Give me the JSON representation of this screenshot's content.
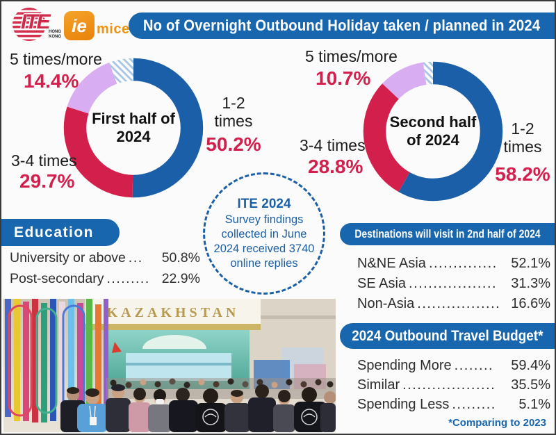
{
  "header": {
    "title": "No of Overnight Outbound Holiday taken / planned in 2024",
    "ite_logo": {
      "text": "ITE",
      "sub1": "HONG",
      "sub2": "KONG"
    },
    "iemice_logo": {
      "square": "ie",
      "suffix": "mice"
    }
  },
  "survey_note": {
    "lines": [
      "ITE 2024",
      "Survey findings",
      "collected in June",
      "2024 received 3740",
      "online replies"
    ]
  },
  "education": {
    "header": "Education",
    "rows": [
      {
        "label": "University or above",
        "dots": "...",
        "value": "50.8%"
      },
      {
        "label": "Post-secondary",
        "dots": ".........",
        "value": "22.9%"
      }
    ]
  },
  "destinations": {
    "header": "Destinations will visit in 2nd half of 2024",
    "rows": [
      {
        "label": "N&NE Asia",
        "dots": "..............",
        "value": "52.1%"
      },
      {
        "label": "SE Asia",
        "dots": "..................",
        "value": "31.3%"
      },
      {
        "label": "Non-Asia",
        "dots": ".................",
        "value": "16.6%"
      }
    ]
  },
  "budget": {
    "header": "2024 Outbound Travel Budget*",
    "rows": [
      {
        "label": "Spending More",
        "dots": "........",
        "value": "59.4%"
      },
      {
        "label": "Similar",
        "dots": "...................",
        "value": "35.5%"
      },
      {
        "label": "Spending Less",
        "dots": ".........",
        "value": "5.1%"
      }
    ],
    "footnote": "*Comparing to 2023"
  },
  "photo": {
    "banner_text": "KAZAKHSTAN"
  },
  "colors": {
    "primary_blue": "#1766ae",
    "chart_blue": "#1a5fa8",
    "accent_red": "#d31f4c",
    "lavender": "#d9adf2",
    "hatch_blue": "#a9c6e3"
  },
  "chart_data": [
    {
      "type": "donut",
      "title": "First half of 2024",
      "unit": "%",
      "segments": [
        {
          "label": "1-2 times",
          "value": 50.2,
          "display": "50.2%",
          "color": "#1a5fa8"
        },
        {
          "label": "3-4 times",
          "value": 29.7,
          "display": "29.7%",
          "color": "#d31f4c"
        },
        {
          "label": "5 times/more",
          "value": 14.4,
          "display": "14.4%",
          "color": "#d9adf2"
        },
        {
          "label": "",
          "value": 5.7,
          "display": "",
          "color": "hatch"
        }
      ]
    },
    {
      "type": "donut",
      "title": "Second half of 2024",
      "unit": "%",
      "segments": [
        {
          "label": "1-2 times",
          "value": 58.2,
          "display": "58.2%",
          "color": "#1a5fa8"
        },
        {
          "label": "3-4 times",
          "value": 28.8,
          "display": "28.8%",
          "color": "#d31f4c"
        },
        {
          "label": "5 times/more",
          "value": 10.7,
          "display": "10.7%",
          "color": "#d9adf2"
        },
        {
          "label": "",
          "value": 2.3,
          "display": "",
          "color": "hatch"
        }
      ]
    }
  ]
}
